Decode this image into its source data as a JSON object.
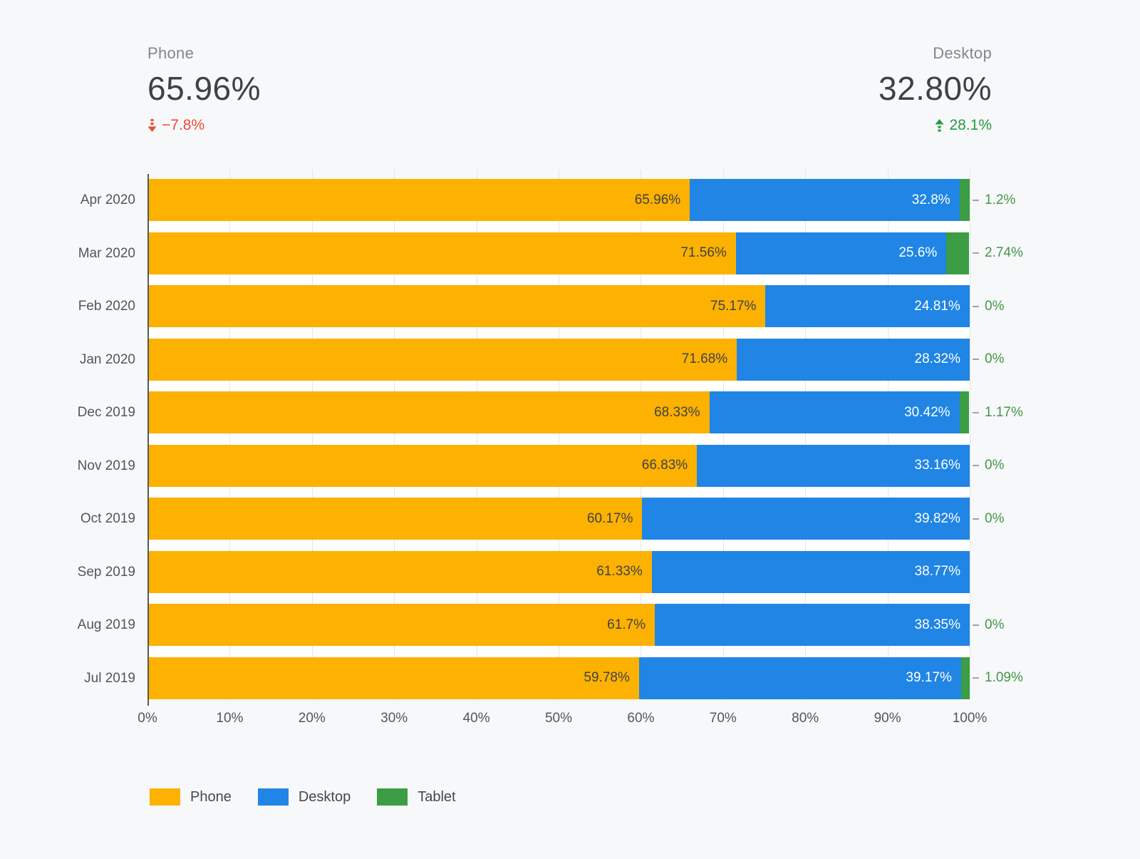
{
  "scorecards": {
    "phone": {
      "label": "Phone",
      "value": "65.96%",
      "delta": "−7.8%",
      "direction": "down"
    },
    "desktop": {
      "label": "Desktop",
      "value": "32.80%",
      "delta": "28.1%",
      "direction": "up"
    }
  },
  "colors": {
    "phone": "#FDB100",
    "desktop": "#2085E4",
    "tablet": "#3C9D45",
    "delta_down": "#F04A35",
    "delta_up": "#259B41",
    "page_bg": "#F7F8F9",
    "plot_bg": "#FFFFFF",
    "gridline": "#E3E5E8"
  },
  "chart_data": {
    "type": "bar",
    "orientation": "horizontal",
    "stacked": true,
    "xlim": [
      0,
      100
    ],
    "grid": true,
    "legend_position": "bottom",
    "x_ticks": [
      "0%",
      "10%",
      "20%",
      "30%",
      "40%",
      "50%",
      "60%",
      "70%",
      "80%",
      "90%",
      "100%"
    ],
    "categories": [
      "Apr 2020",
      "Mar 2020",
      "Feb 2020",
      "Jan 2020",
      "Dec 2019",
      "Nov 2019",
      "Oct 2019",
      "Sep 2019",
      "Aug 2019",
      "Jul 2019"
    ],
    "series": [
      {
        "name": "Phone",
        "color": "#FDB100",
        "values": [
          65.96,
          71.56,
          75.17,
          71.68,
          68.33,
          66.83,
          60.17,
          61.33,
          61.7,
          59.78
        ],
        "labels": [
          "65.96%",
          "71.56%",
          "75.17%",
          "71.68%",
          "68.33%",
          "66.83%",
          "60.17%",
          "61.33%",
          "61.7%",
          "59.78%"
        ]
      },
      {
        "name": "Desktop",
        "color": "#2085E4",
        "values": [
          32.8,
          25.6,
          24.81,
          28.32,
          30.42,
          33.16,
          39.82,
          38.77,
          38.35,
          39.17
        ],
        "labels": [
          "32.8%",
          "25.6%",
          "24.81%",
          "28.32%",
          "30.42%",
          "33.16%",
          "39.82%",
          "38.77%",
          "38.35%",
          "39.17%"
        ]
      },
      {
        "name": "Tablet",
        "color": "#3C9D45",
        "values": [
          1.2,
          2.74,
          0,
          0,
          1.17,
          0,
          0,
          null,
          0,
          1.09
        ],
        "labels": [
          "1.2%",
          "2.74%",
          "0%",
          "0%",
          "1.17%",
          "0%",
          "0%",
          "",
          "0%",
          "1.09%"
        ]
      }
    ]
  },
  "legend": [
    {
      "label": "Phone",
      "color": "#FDB100"
    },
    {
      "label": "Desktop",
      "color": "#2085E4"
    },
    {
      "label": "Tablet",
      "color": "#3C9D45"
    }
  ]
}
